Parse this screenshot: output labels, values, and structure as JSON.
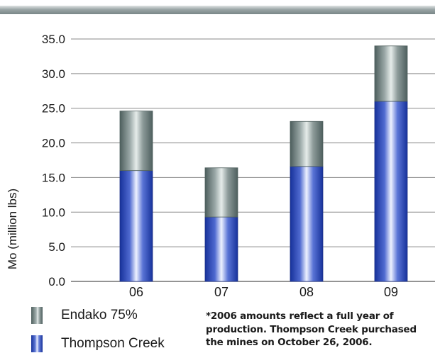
{
  "chart_data": {
    "type": "bar",
    "stacked": true,
    "categories": [
      "06",
      "07",
      "08",
      "09"
    ],
    "series": [
      {
        "name": "Thompson Creek",
        "values": [
          16.0,
          9.3,
          16.6,
          26.0
        ]
      },
      {
        "name": "Endako 75%",
        "values": [
          8.6,
          7.1,
          6.5,
          8.0
        ]
      }
    ],
    "ylabel": "Mo (million lbs)",
    "xlabel": "",
    "ylim": [
      0,
      35
    ],
    "yticks": [
      "0.0",
      "5.0",
      "10.0",
      "15.0",
      "20.0",
      "25.0",
      "30.0",
      "35.0"
    ],
    "grid": true,
    "colors": {
      "Thompson Creek": "#3a55c8",
      "Endako 75%": "#7f8f8e"
    }
  },
  "legend": {
    "items": [
      {
        "label": "Endako 75%",
        "icon": "endako-swatch"
      },
      {
        "label": "Thompson Creek",
        "icon": "thompson-creek-swatch"
      }
    ]
  },
  "footnote": {
    "lines": [
      "*2006 amounts reflect a full year of",
      "production. Thompson Creek purchased",
      "the mines on October 26, 2006."
    ]
  }
}
